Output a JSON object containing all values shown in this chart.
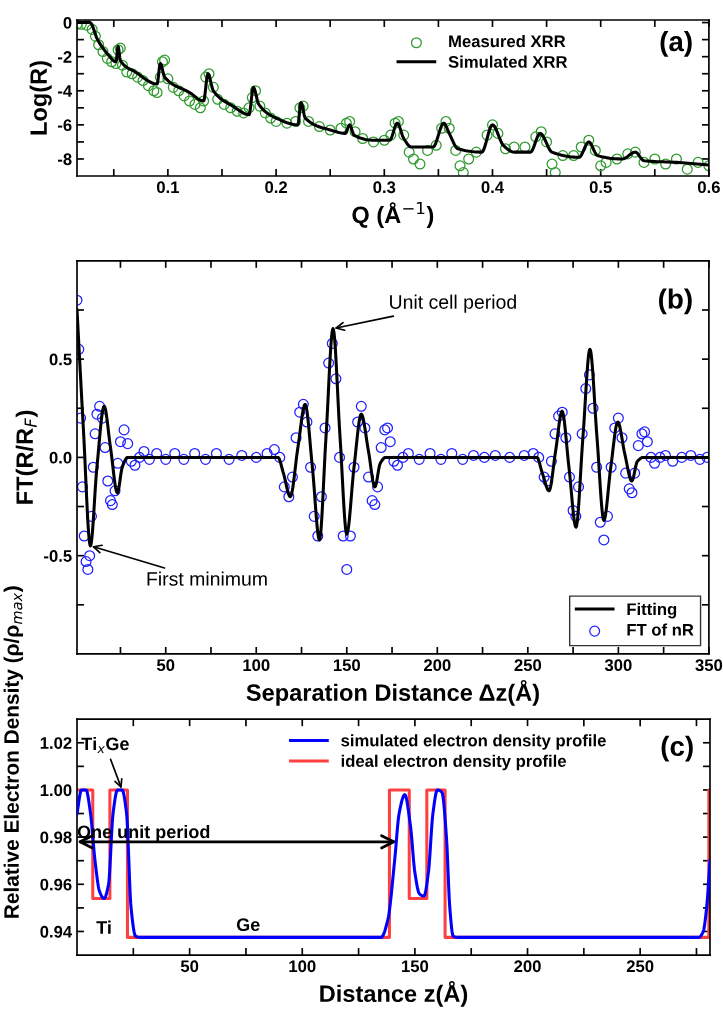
{
  "chart_data": [
    {
      "type": "scatter",
      "xlabel": "Q (Å$^{−1}$)",
      "ylabel": "Log(R)",
      "xlim": [
        0.016,
        0.6
      ],
      "ylim": [
        -9,
        0.15
      ],
      "xticks": [
        {
          "value": 0.05,
          "label": null
        },
        0.1,
        {
          "value": 0.15,
          "label": null
        },
        0.2,
        {
          "value": 0.25,
          "label": null
        },
        0.3,
        {
          "value": 0.35,
          "label": null
        },
        0.4,
        {
          "value": 0.45,
          "label": null
        },
        0.5,
        {
          "value": 0.55,
          "label": null
        },
        0.6
      ],
      "yticks": [
        -8,
        {
          "value": -7,
          "label": null
        },
        -6,
        {
          "value": -5,
          "label": null
        },
        -4,
        {
          "value": -3,
          "label": null
        },
        -2,
        {
          "value": -1,
          "label": null
        },
        0
      ],
      "legend": "top right",
      "annotations": [
        "(a)"
      ],
      "series": [
        {
          "name": "Measured XRR",
          "marker": "circle",
          "color": "#2e9a2e",
          "x": [
            0.016,
            0.02,
            0.025,
            0.03,
            0.033,
            0.036,
            0.04,
            0.044,
            0.048,
            0.052,
            0.054,
            0.056,
            0.058,
            0.062,
            0.067,
            0.072,
            0.077,
            0.082,
            0.087,
            0.09,
            0.093,
            0.095,
            0.097,
            0.1,
            0.105,
            0.11,
            0.115,
            0.12,
            0.125,
            0.13,
            0.133,
            0.135,
            0.138,
            0.142,
            0.146,
            0.152,
            0.158,
            0.164,
            0.17,
            0.175,
            0.178,
            0.181,
            0.185,
            0.19,
            0.195,
            0.2,
            0.21,
            0.218,
            0.222,
            0.225,
            0.23,
            0.24,
            0.25,
            0.26,
            0.265,
            0.268,
            0.273,
            0.28,
            0.29,
            0.3,
            0.306,
            0.31,
            0.313,
            0.318,
            0.323,
            0.327,
            0.333,
            0.34,
            0.348,
            0.353,
            0.357,
            0.36,
            0.366,
            0.37,
            0.373,
            0.378,
            0.385,
            0.395,
            0.4,
            0.405,
            0.412,
            0.42,
            0.43,
            0.44,
            0.445,
            0.45,
            0.455,
            0.458,
            0.465,
            0.475,
            0.482,
            0.489,
            0.495,
            0.5,
            0.505,
            0.515,
            0.525,
            0.532,
            0.54,
            0.55,
            0.56,
            0.57,
            0.58,
            0.59,
            0.6
          ],
          "values": [
            -0.1,
            -0.1,
            -0.15,
            -0.4,
            -0.8,
            -1.3,
            -1.7,
            -2.1,
            -2.3,
            -2.4,
            -1.6,
            -1.5,
            -2.5,
            -2.9,
            -3.0,
            -3.2,
            -3.4,
            -3.7,
            -4.0,
            -4.1,
            -3.2,
            -2.3,
            -2.2,
            -3.3,
            -3.8,
            -4.0,
            -4.3,
            -4.6,
            -4.8,
            -5.0,
            -4.6,
            -3.2,
            -3.0,
            -3.8,
            -4.5,
            -4.8,
            -5.0,
            -5.2,
            -5.3,
            -5.0,
            -4.4,
            -4.0,
            -4.9,
            -5.3,
            -5.6,
            -5.8,
            -5.9,
            -5.8,
            -5.0,
            -4.9,
            -5.8,
            -6.1,
            -6.3,
            -6.2,
            -5.9,
            -5.8,
            -6.4,
            -6.8,
            -7.0,
            -6.9,
            -6.6,
            -5.9,
            -5.8,
            -6.6,
            -7.6,
            -8.0,
            -8.3,
            -7.5,
            -7.2,
            -6.2,
            -5.8,
            -6.2,
            -7.5,
            -8.4,
            -8.8,
            -8.0,
            -7.6,
            -6.6,
            -6.0,
            -6.5,
            -7.4,
            -7.3,
            -7.3,
            -6.7,
            -6.4,
            -7.0,
            -8.3,
            -8.8,
            -7.8,
            -7.8,
            -7.3,
            -6.9,
            -7.5,
            -8.4,
            -8.2,
            -8.0,
            -7.7,
            -7.6,
            -8.2,
            -8.0,
            -8.3,
            -8.0,
            -8.6,
            -8.2,
            -8.4
          ]
        },
        {
          "name": "Simulated XRR",
          "type": "line",
          "color": "#000000",
          "x": [
            0.016,
            0.028,
            0.035,
            0.045,
            0.052,
            0.054,
            0.056,
            0.07,
            0.09,
            0.093,
            0.097,
            0.12,
            0.133,
            0.137,
            0.142,
            0.16,
            0.175,
            0.179,
            0.184,
            0.2,
            0.22,
            0.223,
            0.227,
            0.25,
            0.264,
            0.268,
            0.272,
            0.29,
            0.305,
            0.312,
            0.318,
            0.325,
            0.345,
            0.355,
            0.36,
            0.368,
            0.39,
            0.4,
            0.41,
            0.42,
            0.435,
            0.444,
            0.455,
            0.48,
            0.489,
            0.497,
            0.52,
            0.532,
            0.54,
            0.57,
            0.6
          ],
          "values": [
            0,
            0,
            -1.0,
            -1.9,
            -2.3,
            -1.4,
            -2.2,
            -2.9,
            -3.6,
            -2.4,
            -3.2,
            -4.1,
            -4.6,
            -3.0,
            -4.0,
            -4.9,
            -5.4,
            -3.8,
            -4.8,
            -5.6,
            -6.0,
            -4.7,
            -5.6,
            -6.3,
            -6.5,
            -6.0,
            -6.6,
            -6.9,
            -6.9,
            -5.9,
            -6.8,
            -7.3,
            -7.3,
            -5.9,
            -6.5,
            -7.4,
            -7.6,
            -6.0,
            -7.2,
            -7.6,
            -7.6,
            -6.5,
            -7.6,
            -7.9,
            -7.0,
            -7.8,
            -8.0,
            -7.6,
            -8.1,
            -8.2,
            -8.35
          ]
        }
      ]
    },
    {
      "type": "line",
      "xlabel": "Separation Distance Δz(Å)",
      "ylabel": "FT(R/R$_{F}$)",
      "xlim": [
        1,
        350
      ],
      "ylim": [
        -1,
        1
      ],
      "xticks": [
        {
          "value": 25,
          "label": null
        },
        50,
        {
          "value": 75,
          "label": null
        },
        100,
        {
          "value": 125,
          "label": null
        },
        150,
        {
          "value": 175,
          "label": null
        },
        200,
        {
          "value": 225,
          "label": null
        },
        250,
        {
          "value": 275,
          "label": null
        },
        300,
        {
          "value": 325,
          "label": null
        },
        350
      ],
      "yticks": [
        {
          "value": -0.75,
          "label": null
        },
        -0.5,
        {
          "value": -0.25,
          "label": null
        },
        {
          "value": 0,
          "label": "0.0"
        },
        {
          "value": 0.25,
          "label": null
        },
        0.5,
        {
          "value": 0.75,
          "label": null
        }
      ],
      "legend": "bottom right",
      "annotations": [
        {
          "text": "Unit cell period",
          "x": 142.4,
          "y": 0.655
        },
        {
          "text": "First minimum",
          "x": 8.4,
          "y": -0.45
        },
        "(b)"
      ],
      "series": [
        {
          "name": "Fitting",
          "color": "#000000",
          "x": [
            1,
            4.5,
            8.4,
            12,
            16,
            19.5,
            23.3,
            26,
            29,
            112,
            115,
            118.8,
            123,
            127,
            131,
            134.9,
            138.5,
            142.4,
            146.3,
            150,
            154,
            158,
            162,
            165.5,
            168.5,
            171.4,
            255,
            258,
            261.7,
            265.3,
            268.9,
            272.7,
            276.6,
            280.4,
            284.3,
            288.2,
            292,
            295.8,
            299.7,
            303.5,
            307.4,
            310.5,
            313.8,
            350
          ],
          "values": [
            0.75,
            0.15,
            -0.45,
            -0.05,
            0.26,
            0.05,
            -0.18,
            -0.05,
            0,
            0,
            -0.08,
            -0.2,
            0.05,
            0.27,
            -0.05,
            -0.42,
            0.1,
            0.655,
            0.1,
            -0.39,
            -0.05,
            0.22,
            0.03,
            -0.15,
            -0.03,
            0,
            0,
            -0.08,
            -0.17,
            0.03,
            0.235,
            -0.05,
            -0.355,
            0.1,
            0.55,
            0.1,
            -0.32,
            -0.05,
            0.18,
            0.02,
            -0.12,
            -0.02,
            0,
            0
          ]
        },
        {
          "name": "FT of nR",
          "type": "scatter",
          "marker": "circle",
          "color": "#2020ff",
          "x": [
            1,
            2,
            3,
            4,
            5,
            6,
            7,
            8,
            9,
            10,
            11,
            12,
            13.5,
            15,
            16.5,
            18,
            19.5,
            20.5,
            22,
            23.5,
            25,
            27,
            29,
            31,
            33,
            35.5,
            38,
            41,
            45,
            50,
            55,
            60,
            66,
            72,
            78,
            85,
            92,
            100,
            106,
            110,
            113,
            115.5,
            118,
            120,
            122,
            124,
            126,
            128,
            130,
            132,
            134,
            136,
            138,
            140,
            142,
            144,
            146,
            148,
            150,
            152,
            154,
            156,
            158,
            160,
            162,
            164,
            165.5,
            167,
            169,
            171,
            172.5,
            174,
            176,
            178,
            181,
            184,
            190,
            196,
            202,
            208,
            214,
            220,
            226,
            232,
            240,
            248,
            253,
            256,
            259,
            261,
            263,
            265,
            267,
            269,
            271,
            273,
            275,
            276.5,
            278,
            280,
            282,
            284,
            286,
            288,
            290,
            292,
            294,
            296,
            298,
            300,
            302,
            304,
            306,
            307.5,
            309,
            311,
            313,
            314.5,
            316,
            318,
            320,
            323,
            326,
            330,
            335,
            340,
            345,
            349
          ],
          "values": [
            0.8,
            0.55,
            0.2,
            -0.15,
            -0.4,
            -0.53,
            -0.57,
            -0.5,
            -0.3,
            -0.05,
            0.12,
            0.22,
            0.26,
            0.2,
            0.05,
            -0.12,
            -0.22,
            -0.24,
            -0.17,
            -0.03,
            0.08,
            0.14,
            0.07,
            -0.02,
            -0.04,
            0.0,
            0.03,
            -0.01,
            0.02,
            -0.01,
            0.02,
            -0.01,
            0.02,
            -0.01,
            0.02,
            -0.01,
            0.01,
            0.0,
            0.02,
            0.04,
            0.0,
            -0.15,
            -0.2,
            -0.1,
            0.1,
            0.23,
            0.27,
            0.18,
            -0.05,
            -0.3,
            -0.4,
            -0.2,
            0.15,
            0.48,
            0.58,
            0.4,
            0.0,
            -0.4,
            -0.57,
            -0.4,
            -0.05,
            0.18,
            0.26,
            0.15,
            -0.1,
            -0.22,
            -0.24,
            -0.15,
            0.05,
            0.14,
            0.15,
            0.08,
            -0.02,
            -0.04,
            0.0,
            0.02,
            -0.01,
            0.02,
            -0.01,
            0.02,
            -0.01,
            0.01,
            0.0,
            0.01,
            0.0,
            0.01,
            0.02,
            0.0,
            -0.1,
            -0.12,
            -0.02,
            0.12,
            0.21,
            0.23,
            0.1,
            -0.1,
            -0.27,
            -0.3,
            -0.15,
            0.12,
            0.35,
            0.42,
            0.25,
            -0.05,
            -0.33,
            -0.42,
            -0.3,
            -0.05,
            0.15,
            0.2,
            0.1,
            -0.08,
            -0.16,
            -0.18,
            -0.08,
            0.06,
            0.12,
            0.13,
            0.08,
            0.0,
            -0.03,
            0.0,
            0.01,
            -0.02,
            0.0,
            0.01,
            -0.01,
            0.0
          ]
        }
      ]
    },
    {
      "type": "line",
      "xlabel": "Distance z(Å)",
      "ylabel": "Relative Electron Density (ρ/ρ$_{max}$)",
      "xlim": [
        0,
        281
      ],
      "ylim": [
        0.93,
        1.03
      ],
      "xticks": [
        {
          "value": 25,
          "label": null
        },
        50,
        {
          "value": 75,
          "label": null
        },
        100,
        {
          "value": 125,
          "label": null
        },
        150,
        {
          "value": 175,
          "label": null
        },
        200,
        {
          "value": 225,
          "label": null
        },
        250,
        {
          "value": 275,
          "label": null
        }
      ],
      "yticks": [
        0.94,
        {
          "value": 0.95,
          "label": null
        },
        0.96,
        {
          "value": 0.97,
          "label": null
        },
        0.98,
        {
          "value": 0.99,
          "label": null
        },
        {
          "value": 1.0,
          "label": "1.00"
        },
        {
          "value": 1.01,
          "label": null
        },
        1.02
      ],
      "legend": "top right",
      "annotations": [
        {
          "text": "Ti$_{x}$Ge",
          "x": 20,
          "y": 1.0
        },
        {
          "text": "One unit period",
          "x": 142,
          "y": 0.978
        },
        {
          "text": "Ti",
          "x": 12,
          "y": 0.954
        },
        {
          "text": "Ge",
          "x": 76,
          "y": 0.9375
        },
        "(c)"
      ],
      "series": [
        {
          "name": "simulated electron density profile",
          "color": "#0000ff",
          "x": [
            0,
            2,
            4,
            6,
            8,
            10,
            12,
            14,
            16,
            18,
            20,
            22,
            24,
            26,
            28,
            135,
            138,
            141,
            143,
            145.5,
            148,
            150,
            152,
            154,
            156,
            158,
            160,
            162,
            164,
            165.5,
            167,
            169,
            276,
            278,
            279.5,
            281
          ],
          "values": [
            0.99,
            1.0,
            1.0,
            0.99,
            0.97,
            0.957,
            0.954,
            0.96,
            0.99,
            1.0,
            1.0,
            0.99,
            0.95,
            0.938,
            0.9375,
            0.9375,
            0.945,
            0.97,
            0.99,
            0.998,
            0.985,
            0.965,
            0.956,
            0.955,
            0.965,
            0.99,
            1.0,
            0.999,
            0.98,
            0.95,
            0.938,
            0.9375,
            0.9375,
            0.94,
            0.95,
            0.97
          ]
        },
        {
          "name": "ideal electron density profile",
          "type": "step",
          "color": "#ff4040",
          "x": [
            0,
            7,
            14.6,
            22.4,
            138.7,
            147.5,
            155.3,
            163.4,
            280.5,
            281
          ],
          "values": [
            1.0,
            0.954,
            1.0,
            0.9375,
            1.0,
            0.954,
            1.0,
            0.9375,
            1.0,
            1.0
          ]
        }
      ]
    }
  ]
}
